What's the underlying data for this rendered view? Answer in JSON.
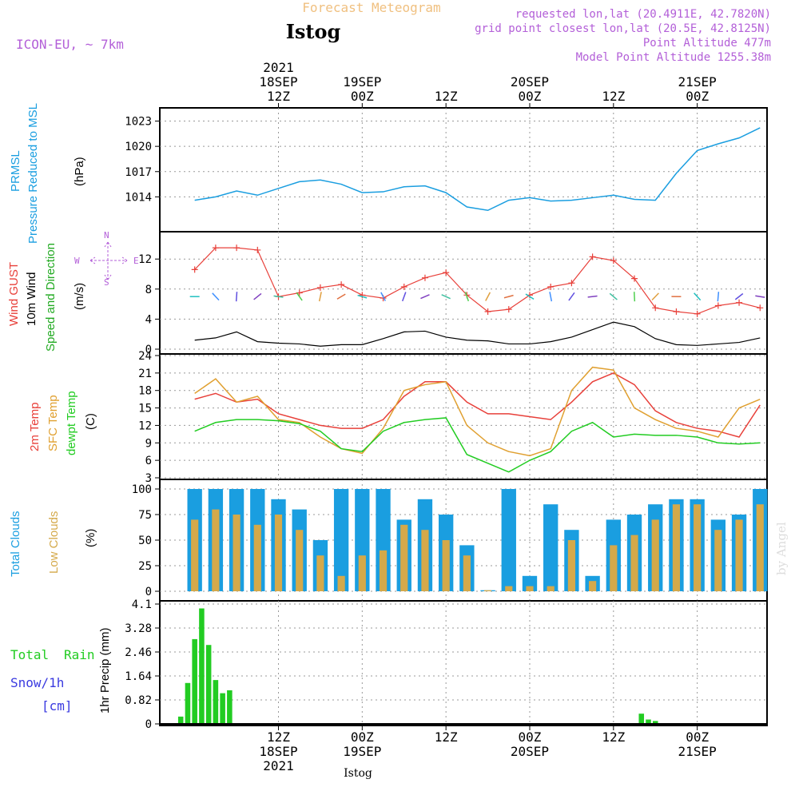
{
  "header": {
    "super_title": "Forecast Meteogram",
    "station": "Istog",
    "model": "ICON-EU, ~ 7km",
    "requested": "requested lon,lat (20.4911E, 42.7820N)",
    "grid_point": "grid point closest lon,lat (20.5E, 42.8125N)",
    "point_altitude": "Point Altitude 477m",
    "model_altitude": "Model Point Altitude 1255.38m",
    "watermark": "by Angel",
    "footer_station": "Istog"
  },
  "time_axis": {
    "top": [
      {
        "lines": [
          "2021",
          "18SEP",
          "12Z"
        ]
      },
      {
        "lines": [
          "19SEP",
          "00Z"
        ]
      },
      {
        "lines": [
          "12Z"
        ]
      },
      {
        "lines": [
          "20SEP",
          "00Z"
        ]
      },
      {
        "lines": [
          "12Z"
        ]
      },
      {
        "lines": [
          "21SEP",
          "00Z"
        ]
      }
    ],
    "bottom": [
      {
        "lines": [
          "12Z",
          "18SEP",
          "2021"
        ]
      },
      {
        "lines": [
          "00Z",
          "19SEP"
        ]
      },
      {
        "lines": [
          "12Z"
        ]
      },
      {
        "lines": [
          "00Z",
          "20SEP"
        ]
      },
      {
        "lines": [
          "12Z"
        ]
      },
      {
        "lines": [
          "00Z",
          "21SEP"
        ]
      }
    ],
    "tick_hours": [
      12,
      24,
      36,
      48,
      60,
      72
    ]
  },
  "panels": {
    "pressure": {
      "label1": "PRMSL",
      "label2": "Pressure Reduced to MSL",
      "unit": "(hPa)"
    },
    "wind": {
      "label_gust": "Wind GUST",
      "label_wind": "10m Wind",
      "label_dir": "Speed and Direction",
      "unit": "(m/s)",
      "compass_n": "N",
      "compass_s": "S",
      "compass_w": "W",
      "compass_e": "E"
    },
    "temp": {
      "label_2m": "2m Temp",
      "label_sfc": "SFC Temp",
      "label_dew": "dewpt Temp",
      "unit": "(C)"
    },
    "cloud": {
      "label_total": "Total Clouds",
      "label_low": "Low Clouds",
      "unit": "(%)"
    },
    "precip": {
      "label_total": "Total",
      "label_rain": "Rain",
      "label_snow": "Snow/1h",
      "label_cm": "[cm]",
      "unit": "1hr Precip (mm)"
    }
  },
  "colors": {
    "pressure": "#1a9ee0",
    "gust": "#e8403a",
    "wind": "#000000",
    "t2m": "#e8403a",
    "sfc": "#e0a030",
    "dew": "#22cc22",
    "total_cloud": "#1a9ee0",
    "low_cloud": "#d4a94a",
    "rain": "#22cc22",
    "snow": "#3a3ae0",
    "header_purple": "#b35fd8",
    "super_title": "#f0c080"
  },
  "chart_data": [
    {
      "type": "line",
      "title": "PRMSL Pressure Reduced to MSL",
      "ylabel": "(hPa)",
      "ylim": [
        1011,
        1024
      ],
      "yticks": [
        1014,
        1017,
        1020,
        1023
      ],
      "x_hours": [
        0,
        3,
        6,
        9,
        12,
        15,
        18,
        21,
        24,
        27,
        30,
        33,
        36,
        39,
        42,
        45,
        48,
        51,
        54,
        57,
        60,
        63,
        66,
        69,
        72,
        75,
        78,
        81
      ],
      "series": [
        {
          "name": "PRMSL",
          "values": [
            1013.6,
            1014.0,
            1014.7,
            1014.2,
            1015.0,
            1015.8,
            1016.0,
            1015.5,
            1014.5,
            1014.6,
            1015.2,
            1015.3,
            1014.5,
            1012.8,
            1012.4,
            1013.6,
            1013.9,
            1013.5,
            1013.6,
            1013.9,
            1014.2,
            1013.7,
            1013.6,
            1016.8,
            1019.5,
            1020.3,
            1021.0,
            1022.2
          ]
        }
      ]
    },
    {
      "type": "line",
      "title": "Wind GUST / 10m Wind Speed and Direction",
      "ylabel": "(m/s)",
      "ylim": [
        0,
        15
      ],
      "yticks": [
        0,
        4,
        8,
        12
      ],
      "x_hours": [
        0,
        3,
        6,
        9,
        12,
        15,
        18,
        21,
        24,
        27,
        30,
        33,
        36,
        39,
        42,
        45,
        48,
        51,
        54,
        57,
        60,
        63,
        66,
        69,
        72,
        75,
        78,
        81
      ],
      "series": [
        {
          "name": "Wind GUST",
          "values": [
            10.6,
            13.5,
            13.5,
            13.2,
            7.0,
            7.5,
            8.2,
            8.6,
            7.2,
            6.8,
            8.3,
            9.5,
            10.2,
            7.2,
            5.0,
            5.3,
            7.2,
            8.3,
            8.8,
            12.3,
            11.8,
            9.4,
            5.5,
            5.0,
            4.7,
            5.8,
            6.2,
            5.5
          ]
        },
        {
          "name": "10m Wind",
          "values": [
            1.2,
            1.5,
            2.3,
            1.0,
            0.8,
            0.7,
            0.4,
            0.6,
            0.6,
            1.4,
            2.3,
            2.4,
            1.6,
            1.2,
            1.1,
            0.7,
            0.7,
            1.0,
            1.6,
            2.6,
            3.6,
            3.0,
            1.4,
            0.6,
            0.5,
            0.7,
            0.9,
            1.5
          ]
        }
      ],
      "direction_arrow_colors": [
        "#20c0c0",
        "#4090ff",
        "#6050e0",
        "#8040c0",
        "#40c0a0",
        "#50d050",
        "#e0a040",
        "#e07040"
      ]
    },
    {
      "type": "line",
      "title": "2m Temp / SFC Temp / dewpt Temp",
      "ylabel": "(C)",
      "ylim": [
        3,
        24
      ],
      "yticks": [
        3,
        6,
        9,
        12,
        15,
        18,
        21,
        24
      ],
      "x_hours": [
        0,
        3,
        6,
        9,
        12,
        15,
        18,
        21,
        24,
        27,
        30,
        33,
        36,
        39,
        42,
        45,
        48,
        51,
        54,
        57,
        60,
        63,
        66,
        69,
        72,
        75,
        78,
        81
      ],
      "series": [
        {
          "name": "2m Temp",
          "values": [
            16.5,
            17.5,
            16.0,
            16.5,
            14.0,
            13.0,
            12.0,
            11.5,
            11.5,
            13.0,
            17.0,
            19.5,
            19.5,
            16.0,
            14.0,
            14.0,
            13.5,
            13.0,
            16.0,
            19.5,
            21.0,
            19.0,
            14.5,
            12.5,
            11.5,
            11.0,
            10.0,
            15.5
          ]
        },
        {
          "name": "SFC Temp",
          "values": [
            17.5,
            20.0,
            16.0,
            17.0,
            13.0,
            12.5,
            10.0,
            8.0,
            7.2,
            11.5,
            18.0,
            19.0,
            19.5,
            12.0,
            9.0,
            7.5,
            6.8,
            8.0,
            18.0,
            22.0,
            21.5,
            15.0,
            13.0,
            11.5,
            11.0,
            10.0,
            15.0,
            16.5
          ]
        },
        {
          "name": "dewpt Temp",
          "values": [
            11.0,
            12.5,
            13.0,
            13.0,
            12.8,
            12.3,
            11.0,
            8.0,
            7.5,
            11.0,
            12.5,
            13.0,
            13.3,
            7.0,
            5.5,
            4.0,
            6.0,
            7.5,
            11.0,
            12.5,
            10.0,
            10.5,
            10.3,
            10.3,
            10.0,
            9.0,
            8.8,
            9.0
          ]
        }
      ]
    },
    {
      "type": "bar",
      "title": "Total Clouds / Low Clouds",
      "ylabel": "(%)",
      "ylim": [
        0,
        100
      ],
      "yticks": [
        0,
        25,
        50,
        75,
        100
      ],
      "x_hours": [
        0,
        3,
        6,
        9,
        12,
        15,
        18,
        21,
        24,
        27,
        30,
        33,
        36,
        39,
        42,
        45,
        48,
        51,
        54,
        57,
        60,
        63,
        66,
        69,
        72,
        75,
        78,
        81
      ],
      "series": [
        {
          "name": "Total Clouds",
          "values": [
            100,
            100,
            100,
            100,
            90,
            80,
            50,
            100,
            100,
            100,
            70,
            90,
            75,
            45,
            1,
            100,
            15,
            85,
            60,
            15,
            70,
            75,
            85,
            90,
            90,
            70,
            75,
            100
          ]
        },
        {
          "name": "Low Clouds",
          "values": [
            70,
            80,
            75,
            65,
            75,
            60,
            35,
            15,
            35,
            40,
            65,
            60,
            50,
            35,
            1,
            5,
            5,
            5,
            50,
            10,
            45,
            55,
            70,
            85,
            85,
            60,
            70,
            85
          ]
        }
      ]
    },
    {
      "type": "bar",
      "title": "1hr Precip",
      "ylabel": "1hr Precip (mm)",
      "ylim": [
        0,
        4.1
      ],
      "yticks": [
        0,
        0.82,
        1.64,
        2.46,
        3.28,
        4.1
      ],
      "x_hours": [
        -2,
        -1,
        0,
        1,
        2,
        3,
        4,
        5,
        6,
        7,
        8,
        64,
        65,
        66
      ],
      "series": [
        {
          "name": "Total Rain",
          "values": [
            0.25,
            1.4,
            2.9,
            3.95,
            2.7,
            1.5,
            1.05,
            1.15,
            0.02,
            0.02,
            0.01,
            0.35,
            0.15,
            0.1
          ]
        },
        {
          "name": "Snow/1h",
          "values": [
            0,
            0,
            0,
            0,
            0,
            0,
            0,
            0,
            0,
            0,
            0,
            0,
            0,
            0
          ]
        }
      ]
    }
  ]
}
